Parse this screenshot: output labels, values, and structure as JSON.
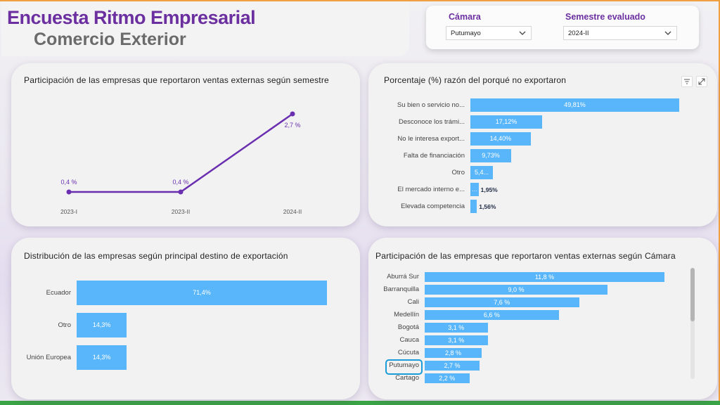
{
  "header": {
    "title": "Encuesta Ritmo Empresarial",
    "subtitle": "Comercio Exterior"
  },
  "filters": {
    "camara_label": "Cámara",
    "camara_value": "Putumayo",
    "semestre_label": "Semestre evaluado",
    "semestre_value": "2024-II"
  },
  "colors": {
    "brand_purple": "#6b2fa0",
    "bar_blue": "#5ab6fa",
    "line_purple": "#6a2fb0",
    "highlight": "#1a9cd8"
  },
  "charts": {
    "line": {
      "title": "Participación de las empresas que reportaron ventas externas según semestre",
      "chart_data": {
        "type": "line",
        "x": [
          "2023-I",
          "2023-II",
          "2024-II"
        ],
        "values": [
          0.4,
          0.4,
          2.7
        ],
        "labels": [
          "0,4 %",
          "0,4 %",
          "2,7 %"
        ]
      }
    },
    "reasons": {
      "title": "Porcentaje (%) razón del porqué no exportaron",
      "chart_data": {
        "type": "bar",
        "orientation": "horizontal",
        "categories": [
          "Su bien o servicio no...",
          "Desconoce los trámi...",
          "No le interesa export...",
          "Falta de financiación",
          "Otro",
          "El mercado interno e...",
          "Elevada competencia"
        ],
        "values": [
          49.81,
          17.12,
          14.4,
          9.73,
          5.4,
          1.95,
          1.56
        ],
        "labels": [
          "49,81%",
          "17,12%",
          "14,40%",
          "9,73%",
          "5,4...",
          "1,95%",
          "1,56%"
        ],
        "inner_stub": [
          false,
          false,
          false,
          false,
          false,
          true,
          false
        ]
      }
    },
    "destinos": {
      "title": "Distribución de las empresas según principal destino de exportación",
      "chart_data": {
        "type": "bar",
        "orientation": "horizontal",
        "categories": [
          "Ecuador",
          "Otro",
          "Unión Europea"
        ],
        "values": [
          71.4,
          14.3,
          14.3
        ],
        "labels": [
          "71,4%",
          "14,3%",
          "14,3%"
        ]
      }
    },
    "camaras": {
      "title": "Participación de las empresas que reportaron ventas externas según Cámara",
      "selected": "Putumayo",
      "chart_data": {
        "type": "bar",
        "orientation": "horizontal",
        "categories": [
          "Aburrá Sur",
          "Barranquilla",
          "Cali",
          "Medellín",
          "Bogotá",
          "Cauca",
          "Cúcuta",
          "Putumayo",
          "Cartago"
        ],
        "values": [
          11.8,
          9.0,
          7.6,
          6.6,
          3.1,
          3.1,
          2.8,
          2.7,
          2.2
        ],
        "labels": [
          "11,8 %",
          "9,0 %",
          "7,6 %",
          "6,6 %",
          "3,1 %",
          "3,1 %",
          "2,8 %",
          "2,7 %",
          "2,2 %"
        ]
      }
    }
  }
}
